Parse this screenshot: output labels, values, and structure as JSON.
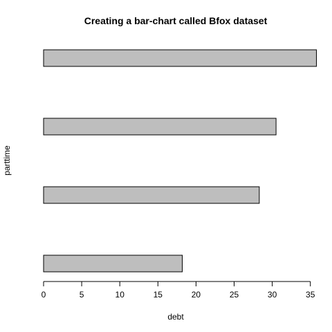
{
  "chart_data": {
    "type": "bar",
    "orientation": "horizontal",
    "title": "Creating a bar-chart called Bfox dataset",
    "xlabel": "debt",
    "ylabel": "parttime",
    "categories": [
      "",
      "",
      "",
      ""
    ],
    "values": [
      18.2,
      28.3,
      30.5,
      35.8
    ],
    "xlim": [
      0,
      35.8
    ],
    "xticks": [
      0,
      5,
      10,
      15,
      20,
      25,
      30,
      35
    ],
    "bar_color": "#bebebe",
    "bar_border_color": "#000000",
    "grid": false,
    "legend": "none"
  }
}
